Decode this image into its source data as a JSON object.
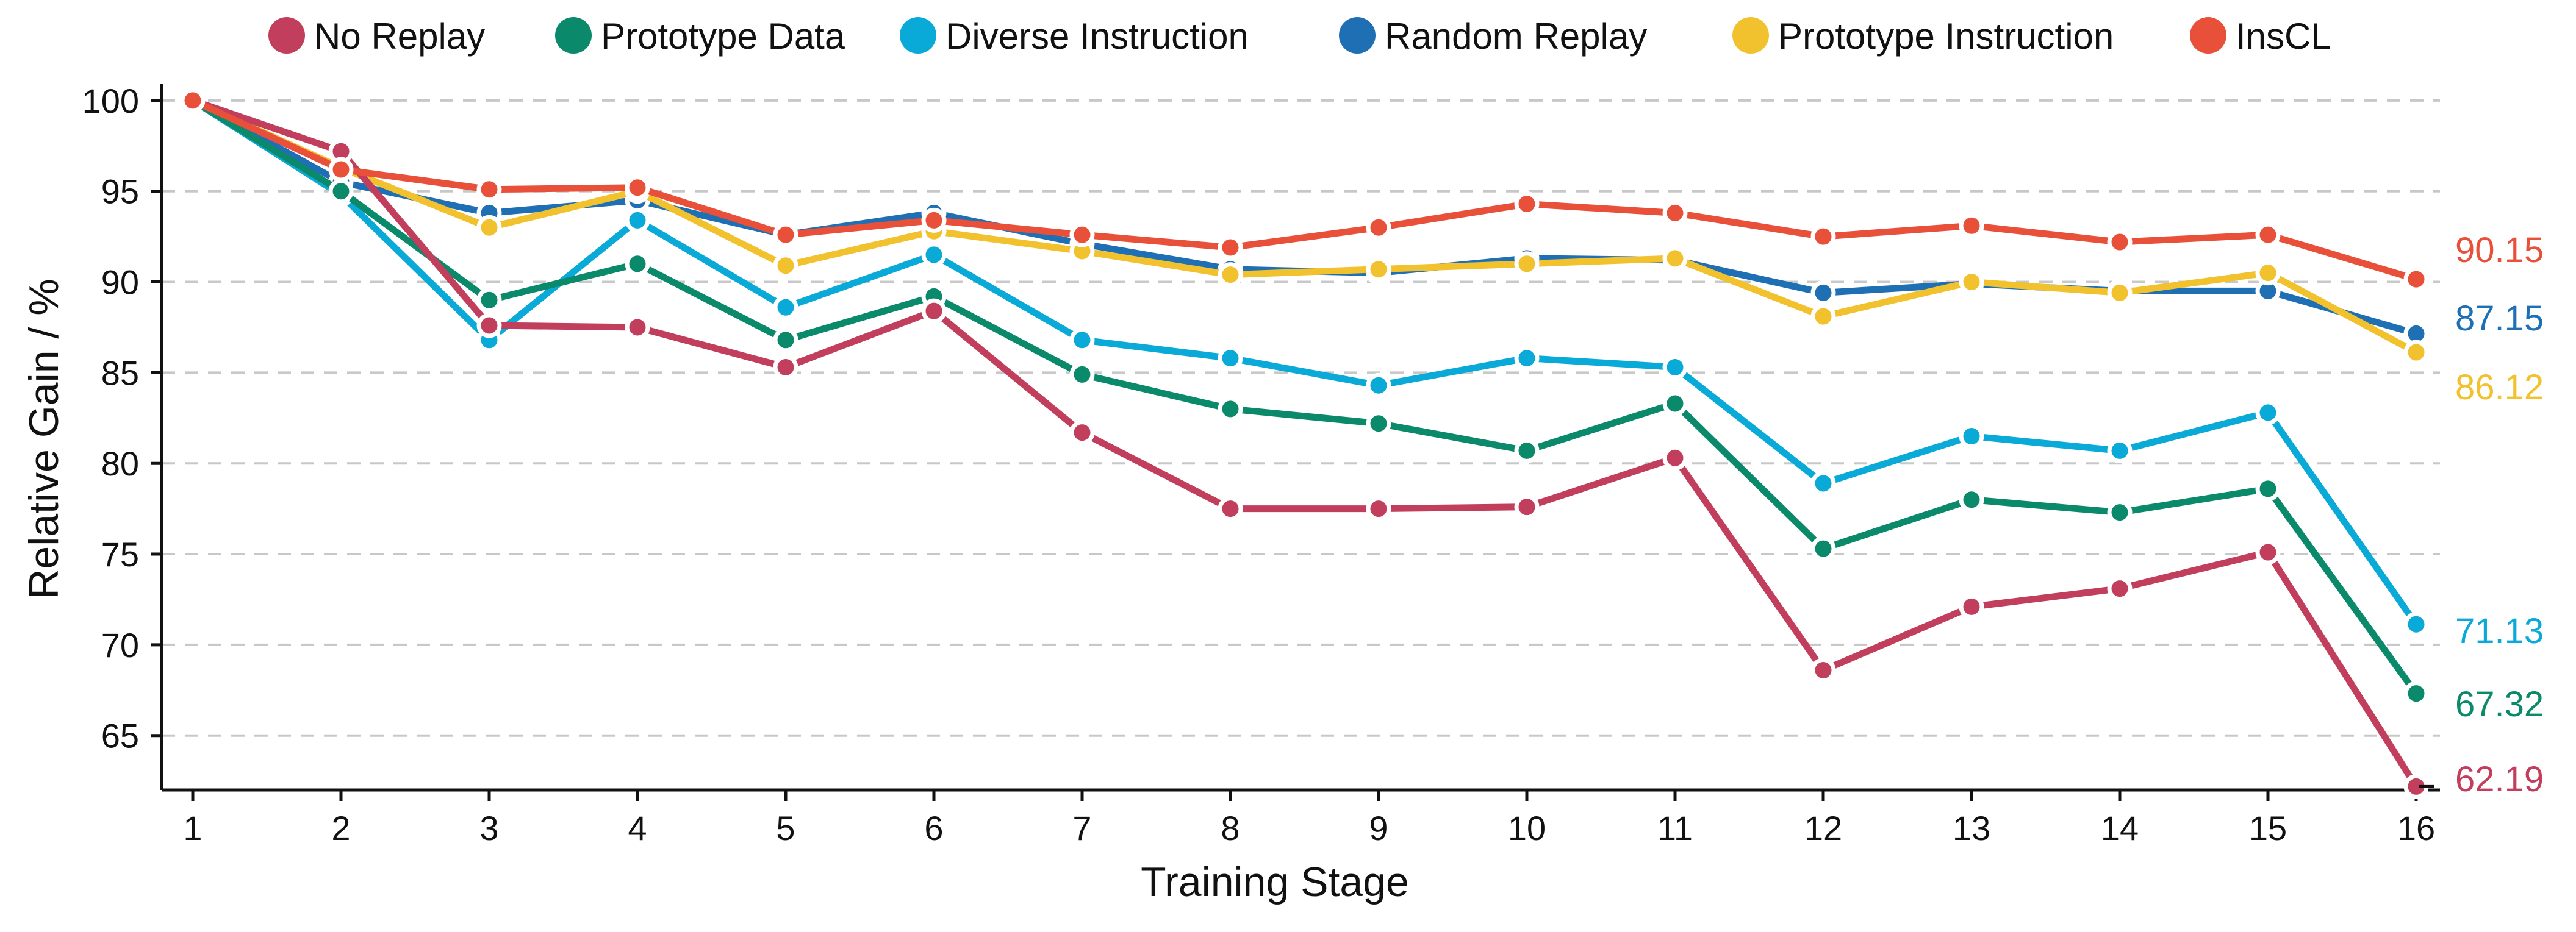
{
  "chart_data": {
    "type": "line",
    "title": "",
    "xlabel": "Training Stage",
    "ylabel": "Relative Gain / %",
    "x": [
      1,
      2,
      3,
      4,
      5,
      6,
      7,
      8,
      9,
      10,
      11,
      12,
      13,
      14,
      15,
      16
    ],
    "xticks": [
      "1",
      "2",
      "3",
      "4",
      "5",
      "6",
      "7",
      "8",
      "9",
      "10",
      "11",
      "12",
      "13",
      "14",
      "15",
      "16"
    ],
    "yticks": [
      "65",
      "70",
      "75",
      "80",
      "85",
      "90",
      "95",
      "100"
    ],
    "ylim": [
      62,
      100.5
    ],
    "grid": "horizontal dashed",
    "legend_position": "top",
    "series": [
      {
        "name": "Random Replay",
        "color": "#1f6fb4",
        "values": [
          100,
          95.5,
          93.8,
          94.5,
          92.6,
          93.8,
          92.1,
          90.7,
          90.5,
          91.3,
          91.2,
          89.4,
          89.9,
          89.5,
          89.5,
          87.15
        ],
        "end_label": "87.15"
      },
      {
        "name": "Prototype Instruction",
        "color": "#f2c12e",
        "values": [
          100,
          96.3,
          93.0,
          95.0,
          90.9,
          92.8,
          91.7,
          90.4,
          90.7,
          91.0,
          91.3,
          88.1,
          90.0,
          89.4,
          90.5,
          86.12
        ],
        "end_label": "86.12"
      },
      {
        "name": "Diverse Instruction",
        "color": "#0aaad8",
        "values": [
          100,
          94.8,
          86.8,
          93.4,
          88.6,
          91.5,
          86.8,
          85.8,
          84.3,
          85.8,
          85.3,
          78.9,
          81.5,
          80.7,
          82.8,
          71.13
        ],
        "end_label": "71.13"
      },
      {
        "name": "Prototype Data",
        "color": "#0a8a6a",
        "values": [
          100,
          95.0,
          89.0,
          91.0,
          86.8,
          89.2,
          84.9,
          83.0,
          82.2,
          80.7,
          83.3,
          75.3,
          78.0,
          77.3,
          78.6,
          67.32
        ],
        "end_label": "67.32"
      },
      {
        "name": "No Replay",
        "color": "#c13e5c",
        "values": [
          100,
          97.2,
          87.6,
          87.5,
          85.3,
          88.4,
          81.7,
          77.5,
          77.5,
          77.6,
          80.3,
          68.6,
          72.1,
          73.1,
          75.1,
          62.19
        ],
        "end_label": "62.19"
      },
      {
        "name": "InsCL",
        "color": "#e8503a",
        "values": [
          100,
          96.2,
          95.1,
          95.2,
          92.6,
          93.4,
          92.6,
          91.9,
          93.0,
          94.3,
          93.8,
          92.5,
          93.1,
          92.2,
          92.6,
          90.15
        ],
        "end_label": "90.15"
      }
    ],
    "legend_order": [
      "No Replay",
      "Prototype Data",
      "Diverse Instruction",
      "Random Replay",
      "Prototype Instruction",
      "InsCL"
    ]
  }
}
